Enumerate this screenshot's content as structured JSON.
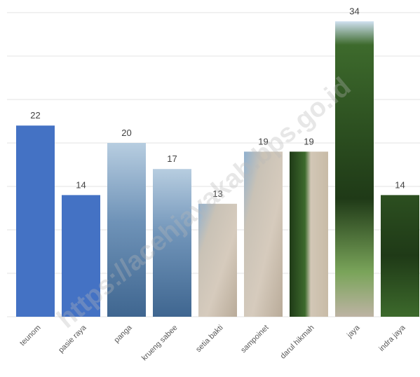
{
  "chart_data": {
    "type": "bar",
    "categories": [
      "teunom",
      "pasie raya",
      "panga",
      "krueng sabee",
      "setia bakti",
      "sampoinet",
      "darul hikmah",
      "jaya",
      "indra jaya"
    ],
    "values": [
      22,
      14,
      20,
      17,
      13,
      19,
      19,
      34,
      14
    ],
    "title": "",
    "xlabel": "",
    "ylabel": "",
    "ylim": [
      0,
      35
    ],
    "grid": true,
    "legend": "none",
    "fills": [
      "solid",
      "solid",
      "photo-sea",
      "photo-sea",
      "photo-beach",
      "photo-beach",
      "photo-forest-path",
      "photo-forest",
      "photo-forest"
    ]
  },
  "colors": {
    "bar_solid": "#4472c4",
    "sea_light": "#b7cde0",
    "sea_mid": "#6f93b8",
    "sea_dark": "#3f6690",
    "sand": "#d6cbbd",
    "sand_dark": "#b9ab99",
    "forest_dark": "#1f3a17",
    "forest_mid": "#3d6a2c",
    "forest_light": "#7aa45a",
    "sky": "#cfe0f0"
  },
  "watermark": "https://acehjayakab.bps.go.id"
}
